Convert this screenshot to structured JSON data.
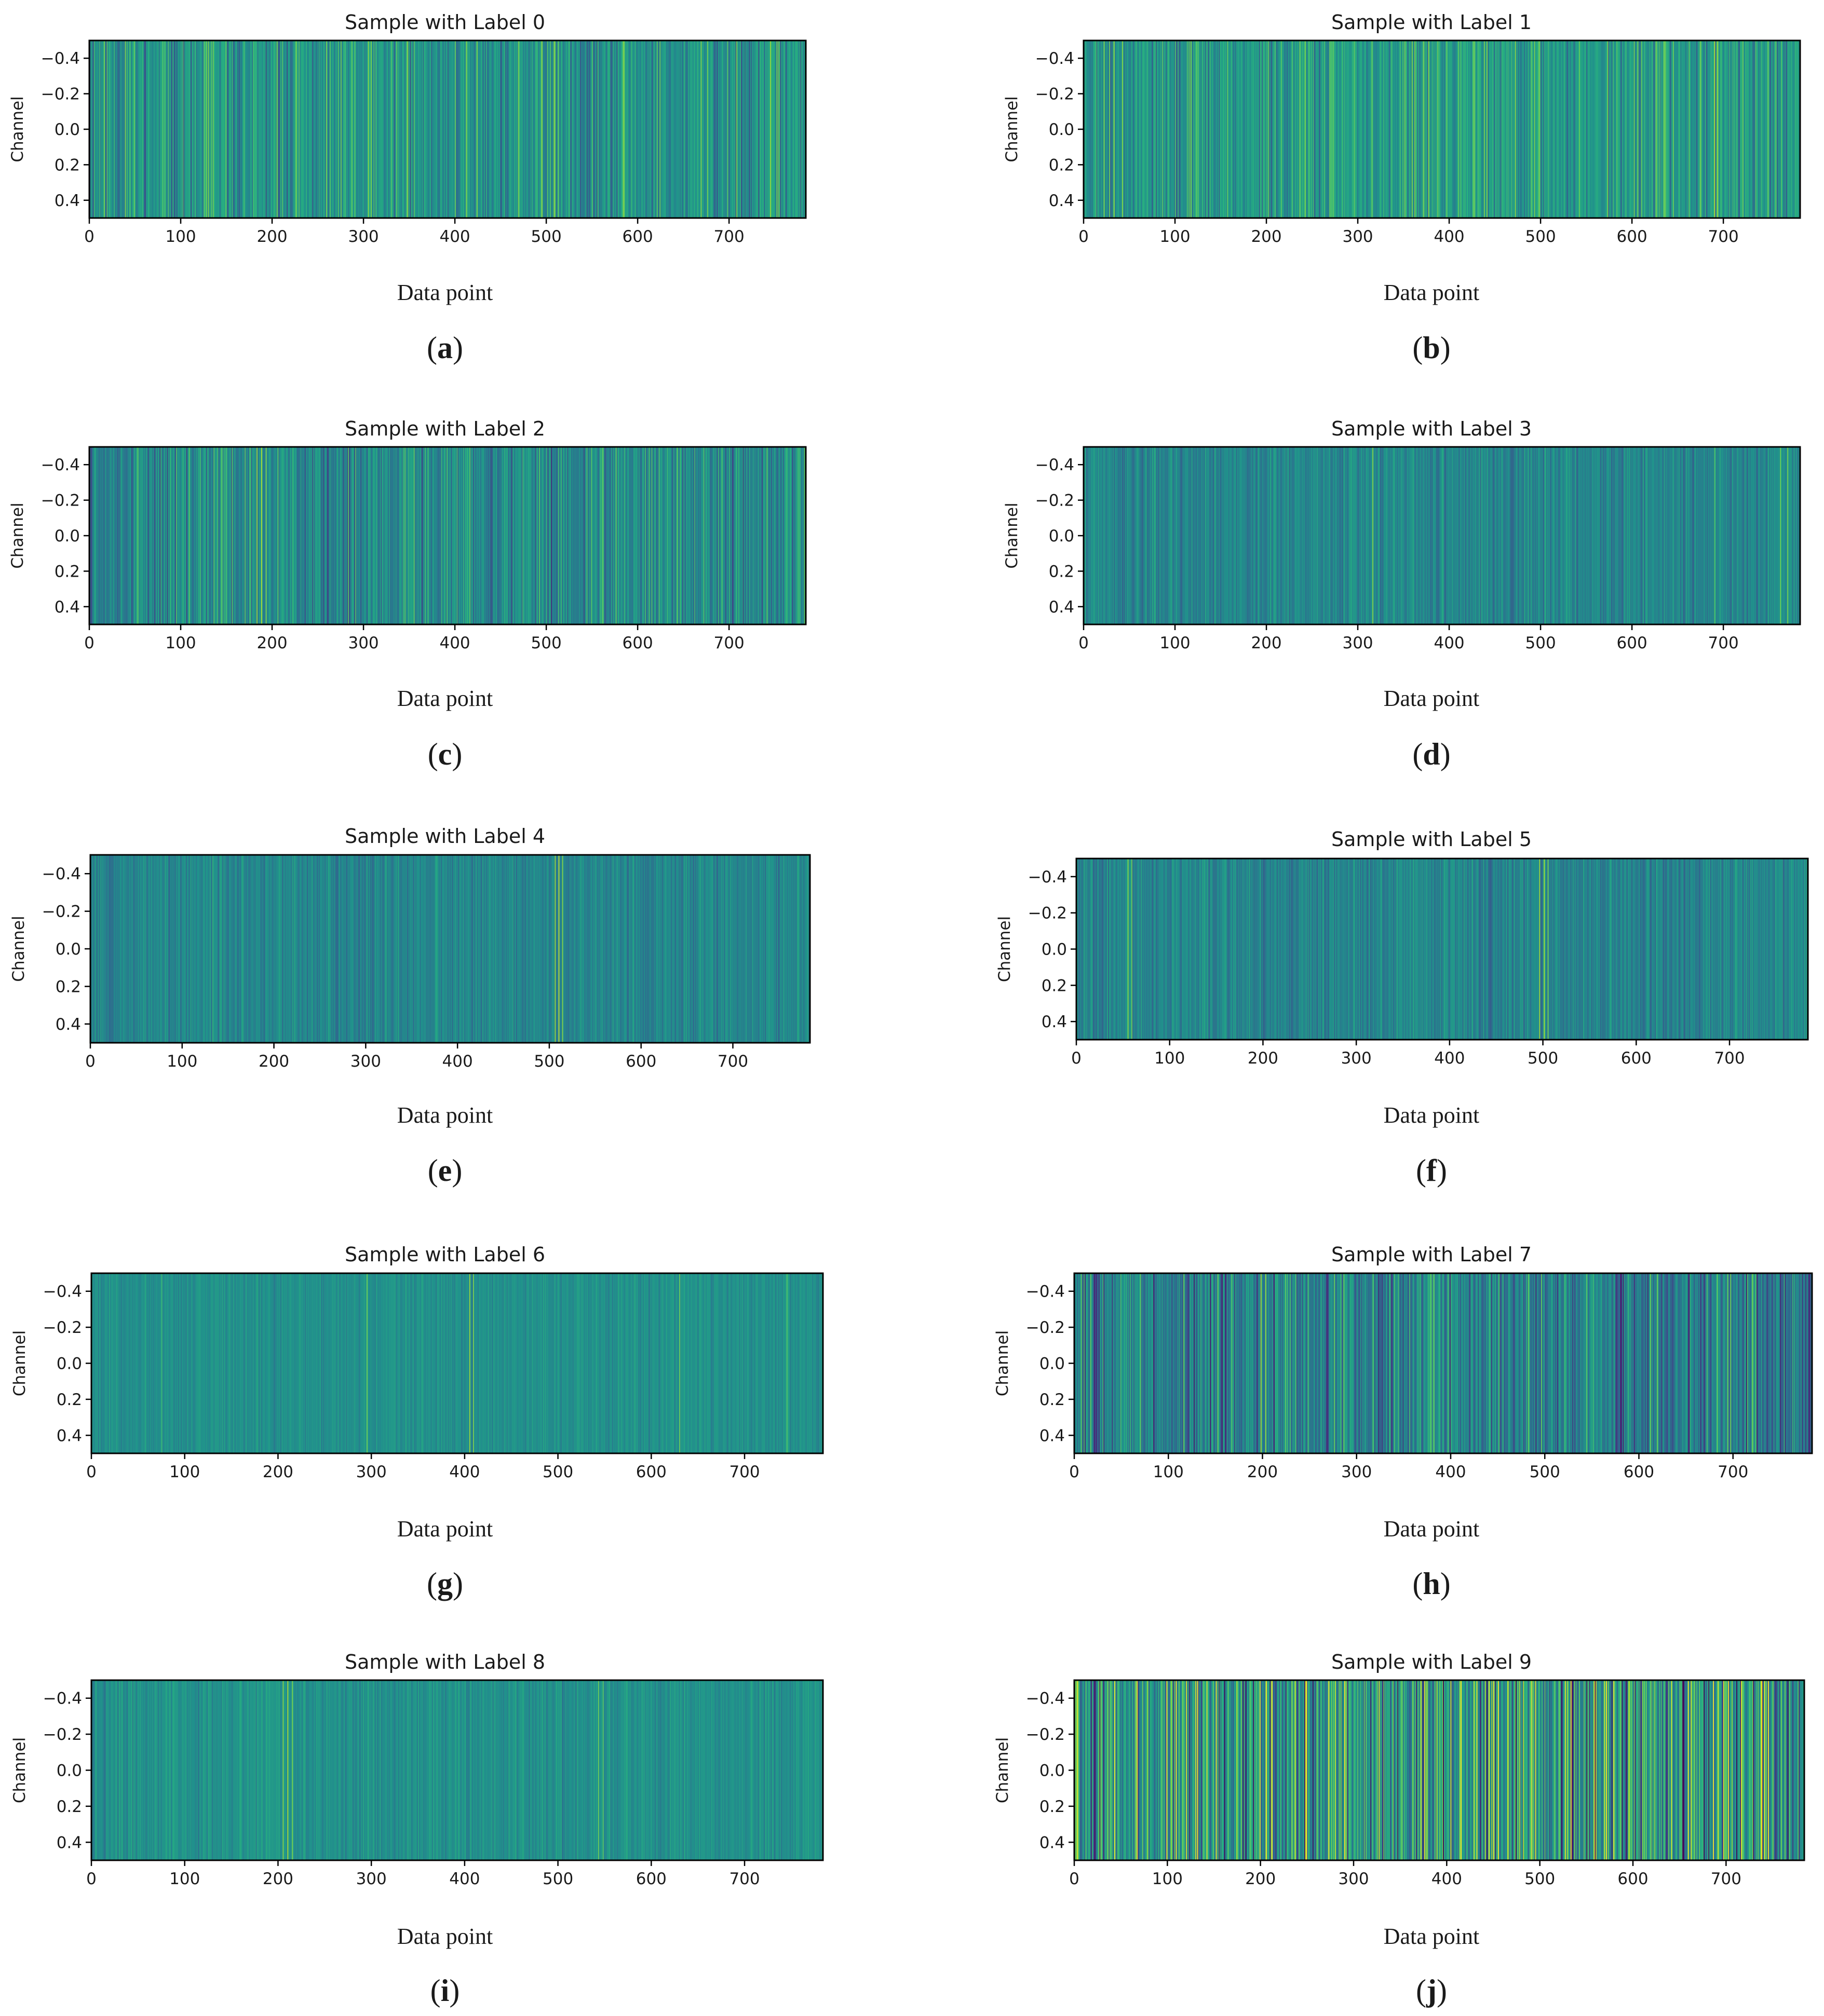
{
  "chart_data": [
    {
      "id": "a",
      "type": "heatmap",
      "title": "Sample with Label 0",
      "xlabel": "Data point",
      "ylabel": "Channel",
      "caption_open": "(",
      "caption_letter": "a",
      "caption_close": ")",
      "xlim": [
        0,
        784
      ],
      "ylim": [
        0.5,
        -0.5
      ],
      "xticks": [
        0,
        100,
        200,
        300,
        400,
        500,
        600,
        700
      ],
      "xtick_labels": [
        "0",
        "100",
        "200",
        "300",
        "400",
        "500",
        "600",
        "700"
      ],
      "yticks": [
        -0.4,
        -0.2,
        0.0,
        0.2,
        0.4
      ],
      "ytick_labels": [
        "−0.4",
        "−0.2",
        "0.0",
        "0.2",
        "0.4"
      ],
      "colormap": "viridis",
      "seed": 11,
      "base": 0.52,
      "spread": 0.3,
      "highlights": [
        {
          "x": 86,
          "v": 0.72
        },
        {
          "x": 470,
          "v": 0.7
        },
        {
          "x": 745,
          "v": 0.85
        },
        {
          "x": 752,
          "v": 0.82
        }
      ]
    },
    {
      "id": "b",
      "type": "heatmap",
      "title": "Sample with Label 1",
      "xlabel": "Data point",
      "ylabel": "Channel",
      "caption_open": "(",
      "caption_letter": "b",
      "caption_close": ")",
      "xlim": [
        0,
        784
      ],
      "ylim": [
        0.5,
        -0.5
      ],
      "xticks": [
        0,
        100,
        200,
        300,
        400,
        500,
        600,
        700
      ],
      "xtick_labels": [
        "0",
        "100",
        "200",
        "300",
        "400",
        "500",
        "600",
        "700"
      ],
      "yticks": [
        -0.4,
        -0.2,
        0.0,
        0.2,
        0.4
      ],
      "ytick_labels": [
        "−0.4",
        "−0.2",
        "0.0",
        "0.2",
        "0.4"
      ],
      "colormap": "viridis",
      "seed": 23,
      "base": 0.55,
      "spread": 0.28,
      "highlights": [
        {
          "x": 28,
          "v": 0.78
        },
        {
          "x": 690,
          "v": 0.9
        },
        {
          "x": 693,
          "v": 0.86
        },
        {
          "x": 100,
          "v": 0.72
        }
      ]
    },
    {
      "id": "c",
      "type": "heatmap",
      "title": "Sample with Label 2",
      "xlabel": "Data point",
      "ylabel": "Channel",
      "caption_open": "(",
      "caption_letter": "c",
      "caption_close": ")",
      "xlim": [
        0,
        784
      ],
      "ylim": [
        0.5,
        -0.5
      ],
      "xticks": [
        0,
        100,
        200,
        300,
        400,
        500,
        600,
        700
      ],
      "xtick_labels": [
        "0",
        "100",
        "200",
        "300",
        "400",
        "500",
        "600",
        "700"
      ],
      "yticks": [
        -0.4,
        -0.2,
        0.0,
        0.2,
        0.4
      ],
      "ytick_labels": [
        "−0.4",
        "−0.2",
        "0.0",
        "0.2",
        "0.4"
      ],
      "colormap": "viridis",
      "seed": 37,
      "base": 0.48,
      "spread": 0.28,
      "highlights": [
        {
          "x": 183,
          "v": 0.85
        },
        {
          "x": 188,
          "v": 0.9
        },
        {
          "x": 193,
          "v": 0.82
        },
        {
          "x": 505,
          "v": 0.15
        },
        {
          "x": 615,
          "v": 0.72
        }
      ]
    },
    {
      "id": "d",
      "type": "heatmap",
      "title": "Sample with Label 3",
      "xlabel": "Data point",
      "ylabel": "Channel",
      "caption_open": "(",
      "caption_letter": "d",
      "caption_close": ")",
      "xlim": [
        0,
        784
      ],
      "ylim": [
        0.5,
        -0.5
      ],
      "xticks": [
        0,
        100,
        200,
        300,
        400,
        500,
        600,
        700
      ],
      "xtick_labels": [
        "0",
        "100",
        "200",
        "300",
        "400",
        "500",
        "600",
        "700"
      ],
      "yticks": [
        -0.4,
        -0.2,
        0.0,
        0.2,
        0.4
      ],
      "ytick_labels": [
        "−0.4",
        "−0.2",
        "0.0",
        "0.2",
        "0.4"
      ],
      "colormap": "viridis",
      "seed": 41,
      "base": 0.46,
      "spread": 0.16,
      "highlights": [
        {
          "x": 316,
          "v": 0.82
        },
        {
          "x": 690,
          "v": 0.72
        },
        {
          "x": 762,
          "v": 0.78
        },
        {
          "x": 770,
          "v": 0.8
        }
      ]
    },
    {
      "id": "e",
      "type": "heatmap",
      "title": "Sample with Label 4",
      "xlabel": "Data point",
      "ylabel": "Channel",
      "caption_open": "(",
      "caption_letter": "e",
      "caption_close": ")",
      "xlim": [
        0,
        784
      ],
      "ylim": [
        0.5,
        -0.5
      ],
      "xticks": [
        0,
        100,
        200,
        300,
        400,
        500,
        600,
        700
      ],
      "xtick_labels": [
        "0",
        "100",
        "200",
        "300",
        "400",
        "500",
        "600",
        "700"
      ],
      "yticks": [
        -0.4,
        -0.2,
        0.0,
        0.2,
        0.4
      ],
      "ytick_labels": [
        "−0.4",
        "−0.2",
        "0.0",
        "0.2",
        "0.4"
      ],
      "colormap": "viridis",
      "seed": 53,
      "base": 0.46,
      "spread": 0.14,
      "highlights": [
        {
          "x": 506,
          "v": 0.85
        },
        {
          "x": 510,
          "v": 0.92
        },
        {
          "x": 514,
          "v": 0.82
        },
        {
          "x": 133,
          "v": 0.66
        }
      ]
    },
    {
      "id": "f",
      "type": "heatmap",
      "title": "Sample with Label 5",
      "xlabel": "Data point",
      "ylabel": "Channel",
      "caption_open": "(",
      "caption_letter": "f",
      "caption_close": ")",
      "xlim": [
        0,
        784
      ],
      "ylim": [
        0.5,
        -0.5
      ],
      "xticks": [
        0,
        100,
        200,
        300,
        400,
        500,
        600,
        700
      ],
      "xtick_labels": [
        "0",
        "100",
        "200",
        "300",
        "400",
        "500",
        "600",
        "700"
      ],
      "yticks": [
        -0.4,
        -0.2,
        0.0,
        0.2,
        0.4
      ],
      "ytick_labels": [
        "−0.4",
        "−0.2",
        "0.0",
        "0.2",
        "0.4"
      ],
      "colormap": "viridis",
      "seed": 67,
      "base": 0.46,
      "spread": 0.16,
      "highlights": [
        {
          "x": 55,
          "v": 0.82
        },
        {
          "x": 59,
          "v": 0.78
        },
        {
          "x": 496,
          "v": 0.85
        },
        {
          "x": 501,
          "v": 0.88
        },
        {
          "x": 505,
          "v": 0.8
        }
      ]
    },
    {
      "id": "g",
      "type": "heatmap",
      "title": "Sample with Label 6",
      "xlabel": "Data point",
      "ylabel": "Channel",
      "caption_open": "(",
      "caption_letter": "g",
      "caption_close": ")",
      "xlim": [
        0,
        784
      ],
      "ylim": [
        0.5,
        -0.5
      ],
      "xticks": [
        0,
        100,
        200,
        300,
        400,
        500,
        600,
        700
      ],
      "xtick_labels": [
        "0",
        "100",
        "200",
        "300",
        "400",
        "500",
        "600",
        "700"
      ],
      "yticks": [
        -0.4,
        -0.2,
        0.0,
        0.2,
        0.4
      ],
      "ytick_labels": [
        "−0.4",
        "−0.2",
        "0.0",
        "0.2",
        "0.4"
      ],
      "colormap": "viridis",
      "seed": 79,
      "base": 0.5,
      "spread": 0.1,
      "highlights": [
        {
          "x": 295,
          "v": 0.78
        },
        {
          "x": 405,
          "v": 0.85
        },
        {
          "x": 409,
          "v": 0.8
        },
        {
          "x": 630,
          "v": 0.78
        },
        {
          "x": 745,
          "v": 0.72
        },
        {
          "x": 75,
          "v": 0.68
        }
      ]
    },
    {
      "id": "h",
      "type": "heatmap",
      "title": "Sample with Label 7",
      "xlabel": "Data point",
      "ylabel": "Channel",
      "caption_open": "(",
      "caption_letter": "h",
      "caption_close": ")",
      "xlim": [
        0,
        784
      ],
      "ylim": [
        0.5,
        -0.5
      ],
      "xticks": [
        0,
        100,
        200,
        300,
        400,
        500,
        600,
        700
      ],
      "xtick_labels": [
        "0",
        "100",
        "200",
        "300",
        "400",
        "500",
        "600",
        "700"
      ],
      "yticks": [
        -0.4,
        -0.2,
        0.0,
        0.2,
        0.4
      ],
      "ytick_labels": [
        "−0.4",
        "−0.2",
        "0.0",
        "0.2",
        "0.4"
      ],
      "colormap": "viridis",
      "seed": 83,
      "base": 0.44,
      "spread": 0.34,
      "highlights": [
        {
          "x": 198,
          "v": 0.88
        },
        {
          "x": 203,
          "v": 0.85
        }
      ]
    },
    {
      "id": "i",
      "type": "heatmap",
      "title": "Sample with Label 8",
      "xlabel": "Data point",
      "ylabel": "Channel",
      "caption_open": "(",
      "caption_letter": "i",
      "caption_close": ")",
      "xlim": [
        0,
        784
      ],
      "ylim": [
        0.5,
        -0.5
      ],
      "xticks": [
        0,
        100,
        200,
        300,
        400,
        500,
        600,
        700
      ],
      "xtick_labels": [
        "0",
        "100",
        "200",
        "300",
        "400",
        "500",
        "600",
        "700"
      ],
      "yticks": [
        -0.4,
        -0.2,
        0.0,
        0.2,
        0.4
      ],
      "ytick_labels": [
        "−0.4",
        "−0.2",
        "0.0",
        "0.2",
        "0.4"
      ],
      "colormap": "viridis",
      "seed": 97,
      "base": 0.5,
      "spread": 0.12,
      "highlights": [
        {
          "x": 205,
          "v": 0.82
        },
        {
          "x": 210,
          "v": 0.88
        },
        {
          "x": 215,
          "v": 0.8
        },
        {
          "x": 543,
          "v": 0.78
        },
        {
          "x": 548,
          "v": 0.74
        }
      ]
    },
    {
      "id": "j",
      "type": "heatmap",
      "title": "Sample with Label 9",
      "xlabel": "Data point",
      "ylabel": "Channel",
      "caption_open": "(",
      "caption_letter": "j",
      "caption_close": ")",
      "xlim": [
        0,
        784
      ],
      "ylim": [
        0.5,
        -0.5
      ],
      "xticks": [
        0,
        100,
        200,
        300,
        400,
        500,
        600,
        700
      ],
      "xtick_labels": [
        "0",
        "100",
        "200",
        "300",
        "400",
        "500",
        "600",
        "700"
      ],
      "yticks": [
        -0.4,
        -0.2,
        0.0,
        0.2,
        0.4
      ],
      "ytick_labels": [
        "−0.4",
        "−0.2",
        "0.0",
        "0.2",
        "0.4"
      ],
      "colormap": "viridis",
      "seed": 101,
      "base": 0.55,
      "spread": 0.55,
      "highlights": [
        {
          "x": 120,
          "v": 0.95
        },
        {
          "x": 452,
          "v": 0.1
        },
        {
          "x": 495,
          "v": 0.97
        },
        {
          "x": 560,
          "v": 0.9
        },
        {
          "x": 662,
          "v": 0.92
        }
      ]
    }
  ]
}
